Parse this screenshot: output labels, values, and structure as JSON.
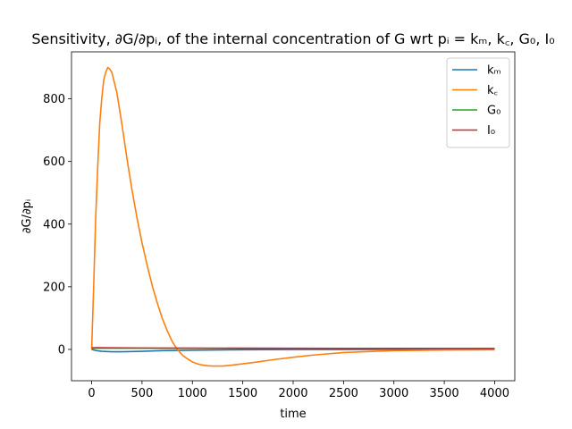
{
  "chart_data": {
    "type": "line",
    "title": "Sensitivity, ∂G/∂pᵢ, of the internal concentration of G wrt pᵢ = kₘ, k꜀, G₀, I₀",
    "xlabel": "time",
    "ylabel": "∂G/∂pᵢ",
    "xlim": [
      -200,
      4200
    ],
    "ylim": [
      -100,
      950
    ],
    "xticks": [
      0,
      500,
      1000,
      1500,
      2000,
      2500,
      3000,
      3500,
      4000
    ],
    "yticks": [
      0,
      200,
      400,
      600,
      800
    ],
    "xtick_labels": [
      "0",
      "500",
      "1000",
      "1500",
      "2000",
      "2500",
      "3000",
      "3500",
      "4000"
    ],
    "ytick_labels": [
      "0",
      "200",
      "400",
      "600",
      "800"
    ],
    "grid": false,
    "legend_position": "top-right",
    "series": [
      {
        "name": "kₘ",
        "color": "#1f77b4",
        "x": [
          0,
          50,
          100,
          200,
          300,
          500,
          700,
          1000,
          1500,
          2000,
          3000,
          4000
        ],
        "y": [
          0,
          -4,
          -6,
          -7.5,
          -7.5,
          -6,
          -4,
          -2.5,
          -1,
          -0.5,
          0,
          0
        ]
      },
      {
        "name": "k꜀",
        "color": "#ff7f0e",
        "x": [
          0,
          20,
          40,
          60,
          80,
          100,
          120,
          140,
          160,
          180,
          200,
          250,
          300,
          350,
          400,
          450,
          500,
          550,
          600,
          650,
          700,
          750,
          800,
          850,
          900,
          950,
          1000,
          1050,
          1100,
          1150,
          1200,
          1300,
          1400,
          1500,
          1600,
          1800,
          2000,
          2200,
          2500,
          3000,
          3500,
          4000
        ],
        "y": [
          0,
          200,
          420,
          580,
          720,
          800,
          860,
          885,
          900,
          895,
          885,
          820,
          720,
          610,
          510,
          420,
          340,
          270,
          205,
          150,
          100,
          60,
          25,
          0,
          -18,
          -30,
          -40,
          -46,
          -50,
          -52,
          -53,
          -53,
          -50,
          -46,
          -42,
          -33,
          -25,
          -18,
          -10,
          -4,
          -2,
          -1
        ]
      },
      {
        "name": "G₀",
        "color": "#2ca02c",
        "x": [
          0,
          500,
          1000,
          2000,
          3000,
          4000
        ],
        "y": [
          4,
          3.8,
          3.6,
          3.4,
          3.2,
          3
        ]
      },
      {
        "name": "I₀",
        "color": "#d62728",
        "x": [
          0,
          50,
          200,
          500,
          1000,
          2000,
          3000,
          4000
        ],
        "y": [
          5,
          5.5,
          5,
          4.5,
          4,
          3.5,
          3.2,
          3
        ]
      }
    ]
  }
}
